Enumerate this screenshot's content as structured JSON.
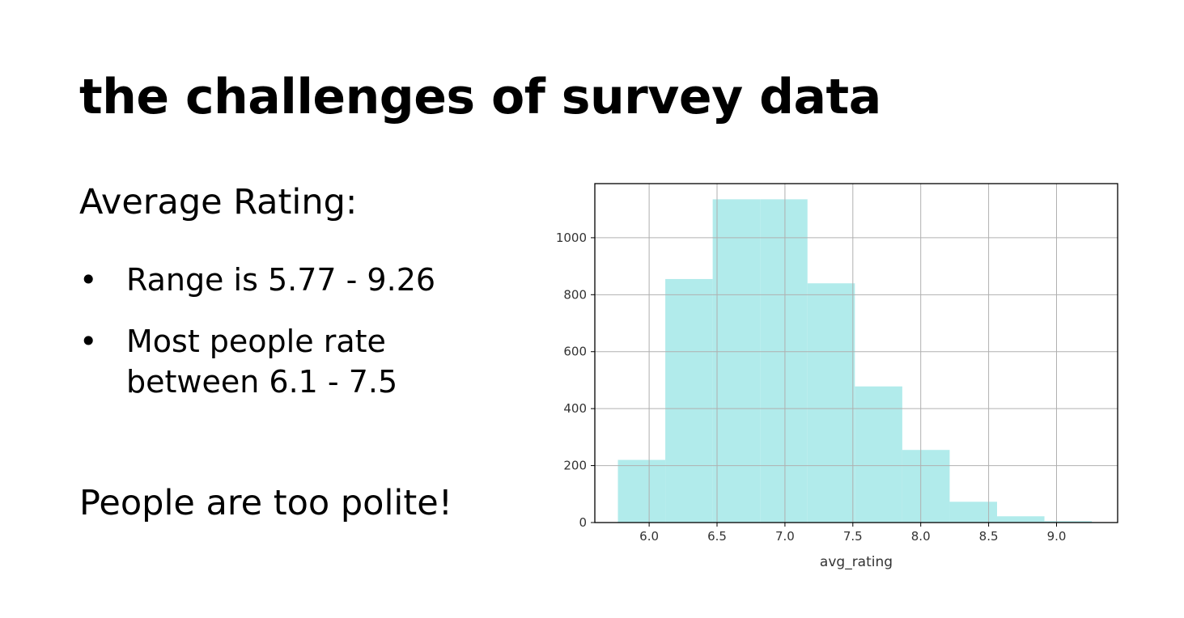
{
  "slide": {
    "title": "the challenges of survey data",
    "heading": "Average Rating:",
    "bullets": [
      "Range is 5.77 - 9.26",
      "Most people rate between 6.1 - 7.5"
    ],
    "bullet_symbol": "•",
    "closing": "People are too polite!"
  },
  "chart_data": {
    "type": "bar",
    "bin_edges": [
      5.77,
      6.119,
      6.468,
      6.817,
      7.166,
      7.515,
      7.864,
      8.213,
      8.562,
      8.911,
      9.26
    ],
    "values": [
      220,
      855,
      1135,
      1135,
      840,
      478,
      255,
      73,
      22,
      5
    ],
    "title": "",
    "xlabel": "avg_rating",
    "ylabel": "",
    "xlim": [
      5.6,
      9.45
    ],
    "ylim": [
      0,
      1190
    ],
    "xticks": [
      6.0,
      6.5,
      7.0,
      7.5,
      8.0,
      8.5,
      9.0
    ],
    "xtick_labels": [
      "6.0",
      "6.5",
      "7.0",
      "7.5",
      "8.0",
      "8.5",
      "9.0"
    ],
    "yticks": [
      0,
      200,
      400,
      600,
      800,
      1000
    ],
    "ytick_labels": [
      "0",
      "200",
      "400",
      "600",
      "800",
      "1000"
    ],
    "grid": true,
    "bar_color": "#b1ebeb",
    "grid_color": "#b0b0b0",
    "frame_color": "#000000"
  }
}
